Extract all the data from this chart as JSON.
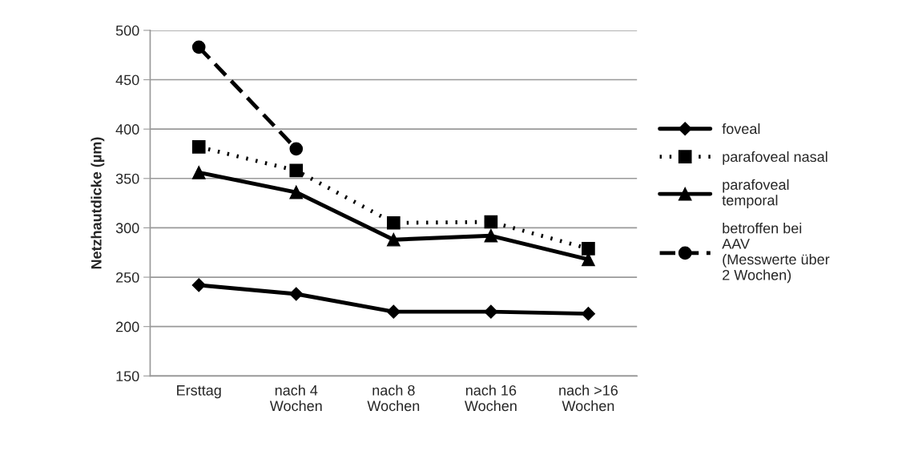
{
  "chart_data": {
    "type": "line",
    "ylabel": "Netzhautdicke (µm)",
    "categories": [
      "Ersttag",
      "nach 4\nWochen",
      "nach 8\nWochen",
      "nach 16\nWochen",
      "nach >16\nWochen"
    ],
    "ylim": [
      150,
      500
    ],
    "yticks": [
      150,
      200,
      250,
      300,
      350,
      400,
      450,
      500
    ],
    "grid": "y",
    "legend": "right",
    "series": [
      {
        "name": "foveal",
        "color": "#000000",
        "marker": "diamond",
        "line_style": "solid",
        "values": [
          242,
          233,
          215,
          215,
          213
        ]
      },
      {
        "name": "parafoveal nasal",
        "color": "#000000",
        "marker": "square",
        "line_style": "dotted",
        "values": [
          382,
          358,
          305,
          306,
          279
        ]
      },
      {
        "name": "parafoveal\ntemporal",
        "color": "#000000",
        "marker": "triangle",
        "line_style": "solid",
        "values": [
          356,
          336,
          288,
          292,
          268
        ]
      },
      {
        "name": "betroffen bei\nAAV\n(Messwerte über\n2 Wochen)",
        "color": "#000000",
        "marker": "circle",
        "line_style": "dashed",
        "values": [
          483,
          380,
          null,
          null,
          null
        ]
      }
    ]
  }
}
